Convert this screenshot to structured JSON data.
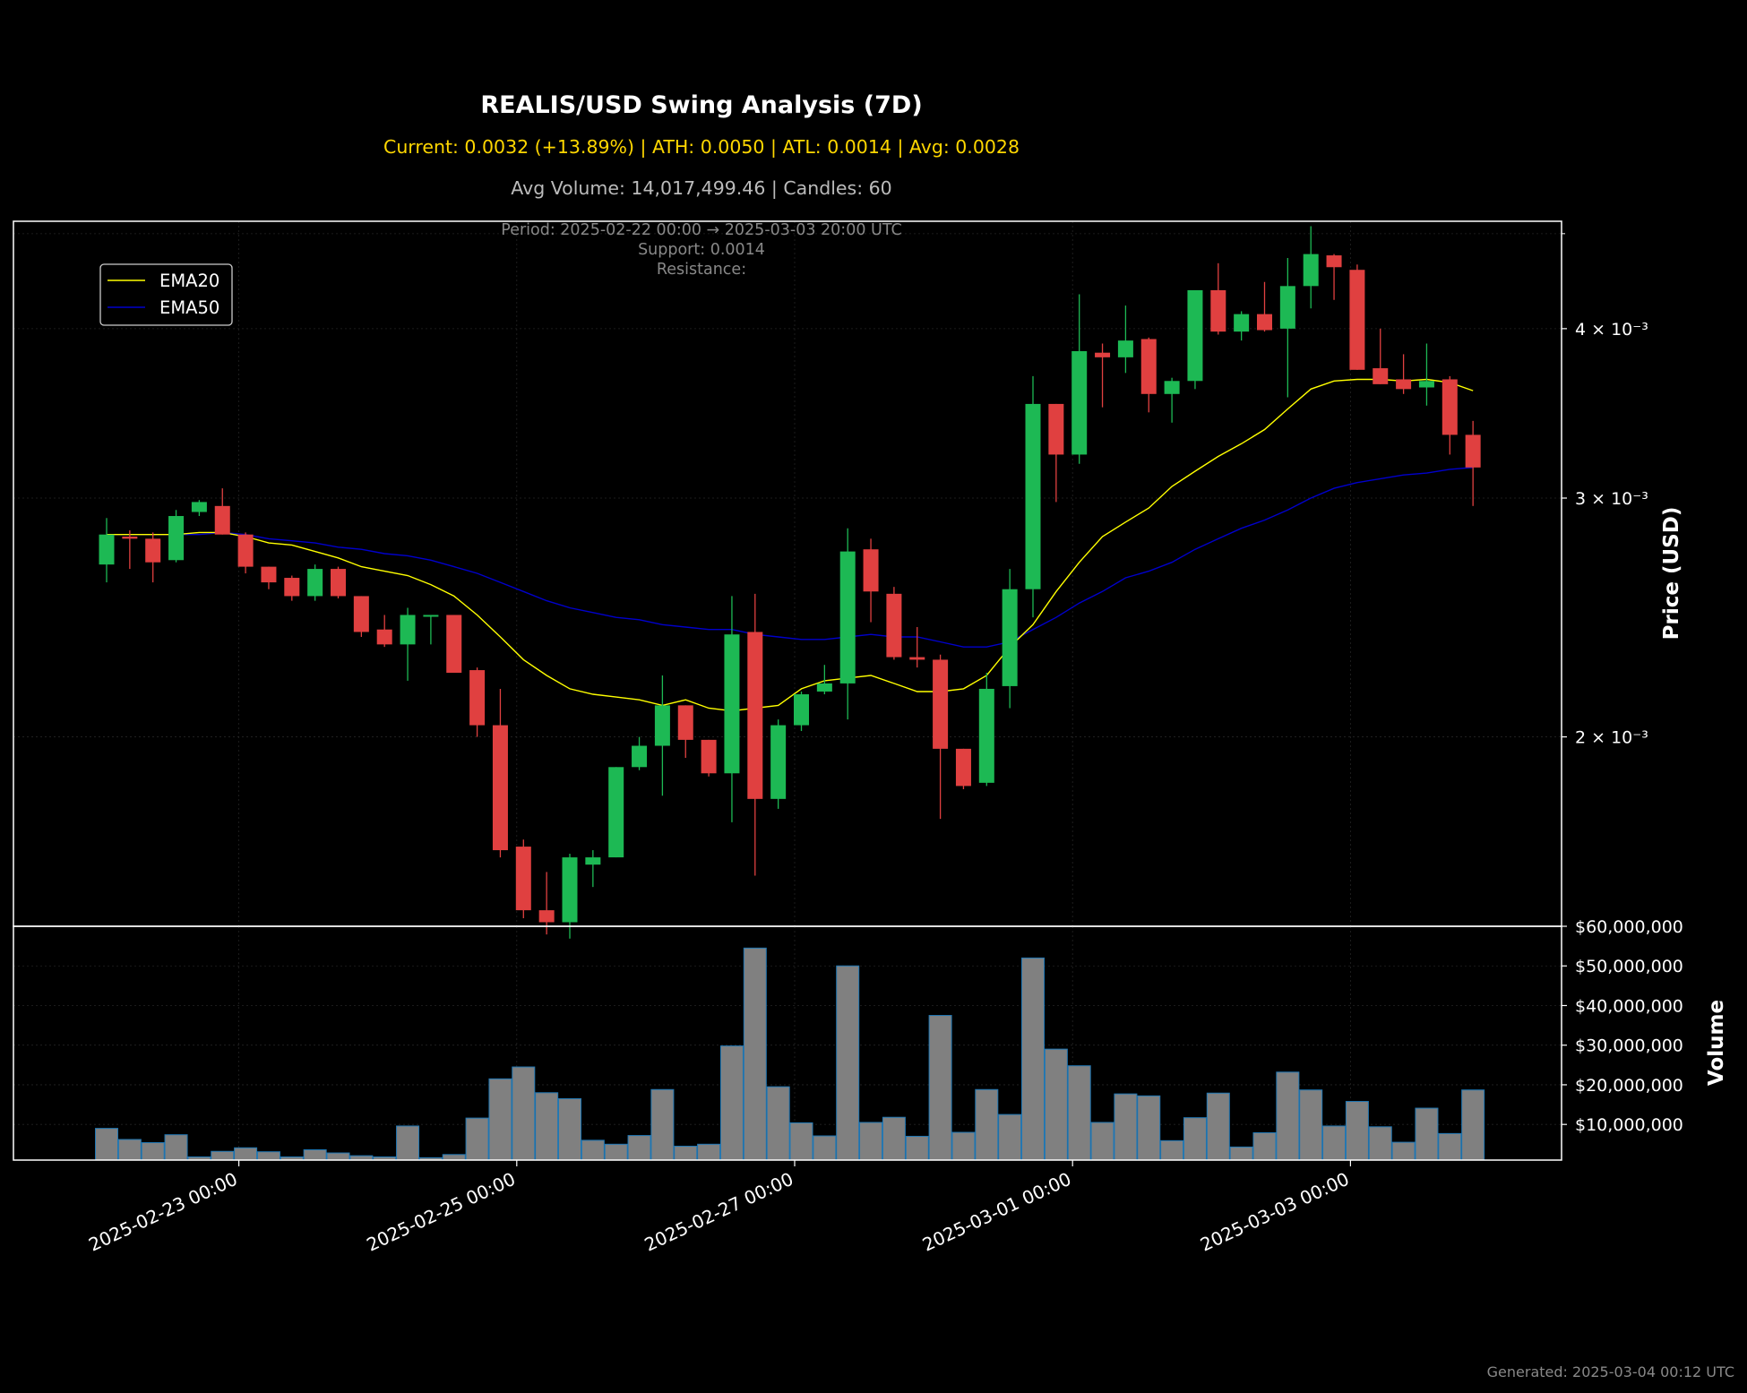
{
  "header": {
    "title": "REALIS/USD Swing Analysis (7D)",
    "stats": "Current: 0.0032 (+13.89%) | ATH: 0.0050 | ATL: 0.0014 | Avg: 0.0028",
    "volume_line": "Avg Volume: 14,017,499.46 | Candles: 60",
    "period": "Period: 2025-02-22 00:00 → 2025-03-03 20:00 UTC",
    "support": "Support: 0.0014",
    "resistance": "Resistance:"
  },
  "footer": {
    "generated": "Generated: 2025-03-04 00:12 UTC"
  },
  "colors": {
    "up": "#1db954",
    "down": "#e04040",
    "ema20": "#ffff00",
    "ema50": "#0000cc",
    "volume_bar": "#808080",
    "volume_edge": "#1f77b4",
    "stats_text": "#ffd700",
    "muted_text": "#bbbbbb",
    "dim_text": "#888888"
  },
  "chart_data": {
    "type": "candlestick",
    "interval": "4h",
    "title": "REALIS/USD Swing Analysis (7D)",
    "price_axis": {
      "label": "Price (USD)",
      "scale": "log",
      "ticks": [
        0.002,
        0.003,
        0.004
      ],
      "tick_labels": [
        "2 × 10⁻³",
        "3 × 10⁻³",
        "4 × 10⁻³"
      ],
      "range": [
        0.00145,
        0.0048
      ]
    },
    "volume_axis": {
      "label": "Volume",
      "ticks": [
        10000000,
        20000000,
        30000000,
        40000000,
        50000000,
        60000000
      ],
      "tick_labels": [
        "$10,000,000",
        "$20,000,000",
        "$30,000,000",
        "$40,000,000",
        "$50,000,000",
        "$60,000,000"
      ],
      "range": [
        1000000,
        60000000
      ]
    },
    "x_axis": {
      "tick_labels": [
        "2025-02-23 00:00",
        "2025-02-25 00:00",
        "2025-02-27 00:00",
        "2025-03-01 00:00",
        "2025-03-03 00:00"
      ],
      "tick_indices": [
        6,
        18,
        30,
        42,
        54
      ]
    },
    "legend": {
      "position": "top-left",
      "entries": [
        "EMA20",
        "EMA50"
      ]
    },
    "grid": true,
    "candles": [
      {
        "o": 0.00268,
        "h": 0.0029,
        "l": 0.0026,
        "c": 0.00282,
        "v": 9000000
      },
      {
        "o": 0.00281,
        "h": 0.00284,
        "l": 0.00266,
        "c": 0.0028,
        "v": 6200000
      },
      {
        "o": 0.0028,
        "h": 0.00283,
        "l": 0.0026,
        "c": 0.00269,
        "v": 5400000
      },
      {
        "o": 0.0027,
        "h": 0.00294,
        "l": 0.00269,
        "c": 0.00291,
        "v": 7400000
      },
      {
        "o": 0.00293,
        "h": 0.00299,
        "l": 0.00291,
        "c": 0.00298,
        "v": 1800000
      },
      {
        "o": 0.00296,
        "h": 0.00305,
        "l": 0.00282,
        "c": 0.00282,
        "v": 3200000
      },
      {
        "o": 0.00282,
        "h": 0.00283,
        "l": 0.00264,
        "c": 0.00267,
        "v": 4100000
      },
      {
        "o": 0.00267,
        "h": 0.00267,
        "l": 0.00257,
        "c": 0.0026,
        "v": 3100000
      },
      {
        "o": 0.00262,
        "h": 0.00263,
        "l": 0.00252,
        "c": 0.00254,
        "v": 1800000
      },
      {
        "o": 0.00254,
        "h": 0.00268,
        "l": 0.00252,
        "c": 0.00266,
        "v": 3600000
      },
      {
        "o": 0.00266,
        "h": 0.00267,
        "l": 0.00253,
        "c": 0.00254,
        "v": 2800000
      },
      {
        "o": 0.00254,
        "h": 0.00254,
        "l": 0.00237,
        "c": 0.00239,
        "v": 2100000
      },
      {
        "o": 0.0024,
        "h": 0.00246,
        "l": 0.00233,
        "c": 0.00234,
        "v": 1800000
      },
      {
        "o": 0.00234,
        "h": 0.00249,
        "l": 0.0022,
        "c": 0.00246,
        "v": 9600000
      },
      {
        "o": 0.00246,
        "h": 0.00246,
        "l": 0.00234,
        "c": 0.00246,
        "v": 1600000
      },
      {
        "o": 0.00246,
        "h": 0.00246,
        "l": 0.00223,
        "c": 0.00223,
        "v": 2400000
      },
      {
        "o": 0.00224,
        "h": 0.00225,
        "l": 0.002,
        "c": 0.00204,
        "v": 11600000
      },
      {
        "o": 0.00204,
        "h": 0.00217,
        "l": 0.00163,
        "c": 0.00165,
        "v": 21500000
      },
      {
        "o": 0.00166,
        "h": 0.00168,
        "l": 0.00147,
        "c": 0.00149,
        "v": 24500000
      },
      {
        "o": 0.00149,
        "h": 0.00159,
        "l": 0.00143,
        "c": 0.00146,
        "v": 18000000
      },
      {
        "o": 0.00146,
        "h": 0.00164,
        "l": 0.00142,
        "c": 0.00163,
        "v": 16500000
      },
      {
        "o": 0.00161,
        "h": 0.00165,
        "l": 0.00155,
        "c": 0.00163,
        "v": 6000000
      },
      {
        "o": 0.00163,
        "h": 0.0019,
        "l": 0.00163,
        "c": 0.0019,
        "v": 5000000
      },
      {
        "o": 0.0019,
        "h": 0.002,
        "l": 0.00189,
        "c": 0.00197,
        "v": 7200000
      },
      {
        "o": 0.00197,
        "h": 0.00222,
        "l": 0.00181,
        "c": 0.00211,
        "v": 18800000
      },
      {
        "o": 0.00211,
        "h": 0.00211,
        "l": 0.00193,
        "c": 0.00199,
        "v": 4500000
      },
      {
        "o": 0.00199,
        "h": 0.00199,
        "l": 0.00187,
        "c": 0.00188,
        "v": 5000000
      },
      {
        "o": 0.00188,
        "h": 0.00254,
        "l": 0.00173,
        "c": 0.00238,
        "v": 29800000
      },
      {
        "o": 0.00239,
        "h": 0.00255,
        "l": 0.00158,
        "c": 0.0018,
        "v": 54500000
      },
      {
        "o": 0.0018,
        "h": 0.00206,
        "l": 0.00177,
        "c": 0.00204,
        "v": 19500000
      },
      {
        "o": 0.00204,
        "h": 0.00216,
        "l": 0.00202,
        "c": 0.00215,
        "v": 10400000
      },
      {
        "o": 0.00216,
        "h": 0.00226,
        "l": 0.00215,
        "c": 0.00219,
        "v": 7100000
      },
      {
        "o": 0.00219,
        "h": 0.00285,
        "l": 0.00206,
        "c": 0.00274,
        "v": 50000000
      },
      {
        "o": 0.00275,
        "h": 0.0028,
        "l": 0.00243,
        "c": 0.00256,
        "v": 10500000
      },
      {
        "o": 0.00255,
        "h": 0.00258,
        "l": 0.00228,
        "c": 0.00229,
        "v": 11800000
      },
      {
        "o": 0.00229,
        "h": 0.00241,
        "l": 0.00225,
        "c": 0.00228,
        "v": 7000000
      },
      {
        "o": 0.00228,
        "h": 0.0023,
        "l": 0.00174,
        "c": 0.00196,
        "v": 37500000
      },
      {
        "o": 0.00196,
        "h": 0.00196,
        "l": 0.00183,
        "c": 0.00184,
        "v": 8000000
      },
      {
        "o": 0.00185,
        "h": 0.00223,
        "l": 0.00184,
        "c": 0.00217,
        "v": 18800000
      },
      {
        "o": 0.00218,
        "h": 0.00266,
        "l": 0.0021,
        "c": 0.00257,
        "v": 12500000
      },
      {
        "o": 0.00257,
        "h": 0.00369,
        "l": 0.00245,
        "c": 0.00352,
        "v": 52000000
      },
      {
        "o": 0.00352,
        "h": 0.00352,
        "l": 0.00298,
        "c": 0.00323,
        "v": 29000000
      },
      {
        "o": 0.00323,
        "h": 0.00424,
        "l": 0.00318,
        "c": 0.00385,
        "v": 24800000
      },
      {
        "o": 0.00384,
        "h": 0.0039,
        "l": 0.0035,
        "c": 0.00381,
        "v": 10500000
      },
      {
        "o": 0.00381,
        "h": 0.00416,
        "l": 0.00371,
        "c": 0.00392,
        "v": 17700000
      },
      {
        "o": 0.00393,
        "h": 0.00394,
        "l": 0.00347,
        "c": 0.00358,
        "v": 17200000
      },
      {
        "o": 0.00358,
        "h": 0.00368,
        "l": 0.00341,
        "c": 0.00366,
        "v": 5900000
      },
      {
        "o": 0.00366,
        "h": 0.00426,
        "l": 0.00361,
        "c": 0.00427,
        "v": 11700000
      },
      {
        "o": 0.00427,
        "h": 0.00447,
        "l": 0.00396,
        "c": 0.00398,
        "v": 17900000
      },
      {
        "o": 0.00398,
        "h": 0.00412,
        "l": 0.00392,
        "c": 0.0041,
        "v": 4300000
      },
      {
        "o": 0.0041,
        "h": 0.00433,
        "l": 0.00398,
        "c": 0.00399,
        "v": 7900000
      },
      {
        "o": 0.004,
        "h": 0.00451,
        "l": 0.00356,
        "c": 0.0043,
        "v": 23200000
      },
      {
        "o": 0.0043,
        "h": 0.00476,
        "l": 0.00414,
        "c": 0.00454,
        "v": 18700000
      },
      {
        "o": 0.00453,
        "h": 0.00454,
        "l": 0.0042,
        "c": 0.00444,
        "v": 9600000
      },
      {
        "o": 0.00442,
        "h": 0.00446,
        "l": 0.00373,
        "c": 0.00373,
        "v": 15800000
      },
      {
        "o": 0.00374,
        "h": 0.004,
        "l": 0.00364,
        "c": 0.00364,
        "v": 9400000
      },
      {
        "o": 0.00367,
        "h": 0.00383,
        "l": 0.00358,
        "c": 0.00361,
        "v": 5500000
      },
      {
        "o": 0.00362,
        "h": 0.0039,
        "l": 0.00351,
        "c": 0.00366,
        "v": 14100000
      },
      {
        "o": 0.00367,
        "h": 0.00369,
        "l": 0.00323,
        "c": 0.00334,
        "v": 7700000
      },
      {
        "o": 0.00334,
        "h": 0.00342,
        "l": 0.00296,
        "c": 0.00316,
        "v": 18700000
      }
    ],
    "ema20": [
      0.00282,
      0.00282,
      0.00282,
      0.00282,
      0.00283,
      0.00283,
      0.00281,
      0.00278,
      0.00277,
      0.00274,
      0.00271,
      0.00267,
      0.00265,
      0.00263,
      0.00259,
      0.00254,
      0.00246,
      0.00237,
      0.00228,
      0.00222,
      0.00217,
      0.00215,
      0.00214,
      0.00213,
      0.00211,
      0.00213,
      0.0021,
      0.00209,
      0.0021,
      0.00211,
      0.00217,
      0.0022,
      0.00221,
      0.00222,
      0.00219,
      0.00216,
      0.00216,
      0.00217,
      0.00222,
      0.00233,
      0.00242,
      0.00256,
      0.00269,
      0.00281,
      0.00288,
      0.00295,
      0.00306,
      0.00314,
      0.00322,
      0.00329,
      0.00337,
      0.00349,
      0.00361,
      0.00366,
      0.00367,
      0.00367,
      0.00366,
      0.00367,
      0.00365,
      0.0036
    ],
    "ema50": [
      0.00282,
      0.00282,
      0.00282,
      0.00282,
      0.00282,
      0.00283,
      0.00282,
      0.0028,
      0.00279,
      0.00278,
      0.00276,
      0.00275,
      0.00273,
      0.00272,
      0.0027,
      0.00267,
      0.00264,
      0.0026,
      0.00256,
      0.00252,
      0.00249,
      0.00247,
      0.00245,
      0.00244,
      0.00242,
      0.00241,
      0.0024,
      0.0024,
      0.00238,
      0.00237,
      0.00236,
      0.00236,
      0.00237,
      0.00238,
      0.00237,
      0.00237,
      0.00235,
      0.00233,
      0.00233,
      0.00235,
      0.0024,
      0.00245,
      0.00251,
      0.00256,
      0.00262,
      0.00265,
      0.00269,
      0.00275,
      0.0028,
      0.00285,
      0.00289,
      0.00294,
      0.003,
      0.00305,
      0.00308,
      0.0031,
      0.00312,
      0.00313,
      0.00315,
      0.00316
    ]
  }
}
